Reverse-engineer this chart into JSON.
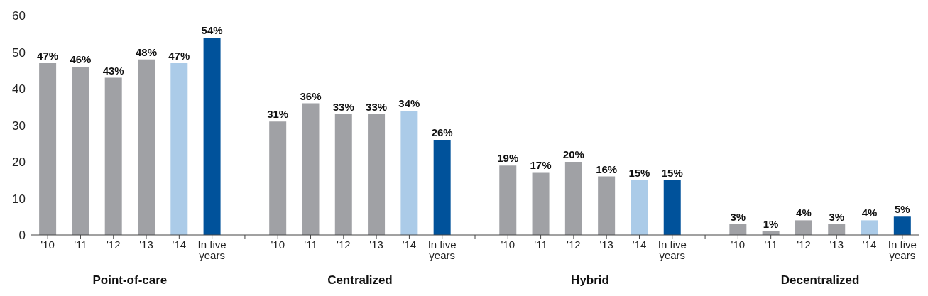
{
  "chart_data": {
    "type": "bar",
    "categories": [
      "'10",
      "'11",
      "'12",
      "'13",
      "'14",
      "In five years",
      null,
      "'10",
      "'11",
      "'12",
      "'13",
      "'14",
      "In five years",
      null,
      "'10",
      "'11",
      "'12",
      "'13",
      "'14",
      "In five years",
      null,
      "'10",
      "'11",
      "'12",
      "'13",
      "'14",
      "In five years"
    ],
    "values": [
      47,
      46,
      43,
      48,
      47,
      54,
      null,
      31,
      36,
      33,
      33,
      34,
      26,
      null,
      19,
      17,
      20,
      16,
      15,
      15,
      null,
      3,
      1,
      4,
      3,
      4,
      5
    ],
    "value_labels": [
      "47%",
      "46%",
      "43%",
      "48%",
      "47%",
      "54%",
      null,
      "31%",
      "36%",
      "33%",
      "33%",
      "34%",
      "26%",
      null,
      "19%",
      "17%",
      "20%",
      "16%",
      "15%",
      "15%",
      null,
      "3%",
      "1%",
      "4%",
      "3%",
      "4%",
      "5%"
    ],
    "colors": [
      "#a0a1a5",
      "#a0a1a5",
      "#a0a1a5",
      "#a0a1a5",
      "#abcbe8",
      "#00529b",
      "#a0a1a5",
      "#a0a1a5",
      "#a0a1a5",
      "#a0a1a5",
      "#a0a1a5",
      "#abcbe8",
      "#00529b",
      "#a0a1a5",
      "#a0a1a5",
      "#a0a1a5",
      "#a0a1a5",
      "#a0a1a5",
      "#abcbe8",
      "#00529b",
      "#a0a1a5",
      "#a0a1a5",
      "#a0a1a5",
      "#a0a1a5",
      "#a0a1a5",
      "#abcbe8",
      "#00529b"
    ],
    "annotations": [
      "Point-of-care",
      "Centralized",
      "Hybrid",
      "Decentralized"
    ],
    "ylim": [
      0,
      60
    ],
    "yticks": [
      0,
      10,
      20,
      30,
      40,
      50,
      60
    ]
  }
}
